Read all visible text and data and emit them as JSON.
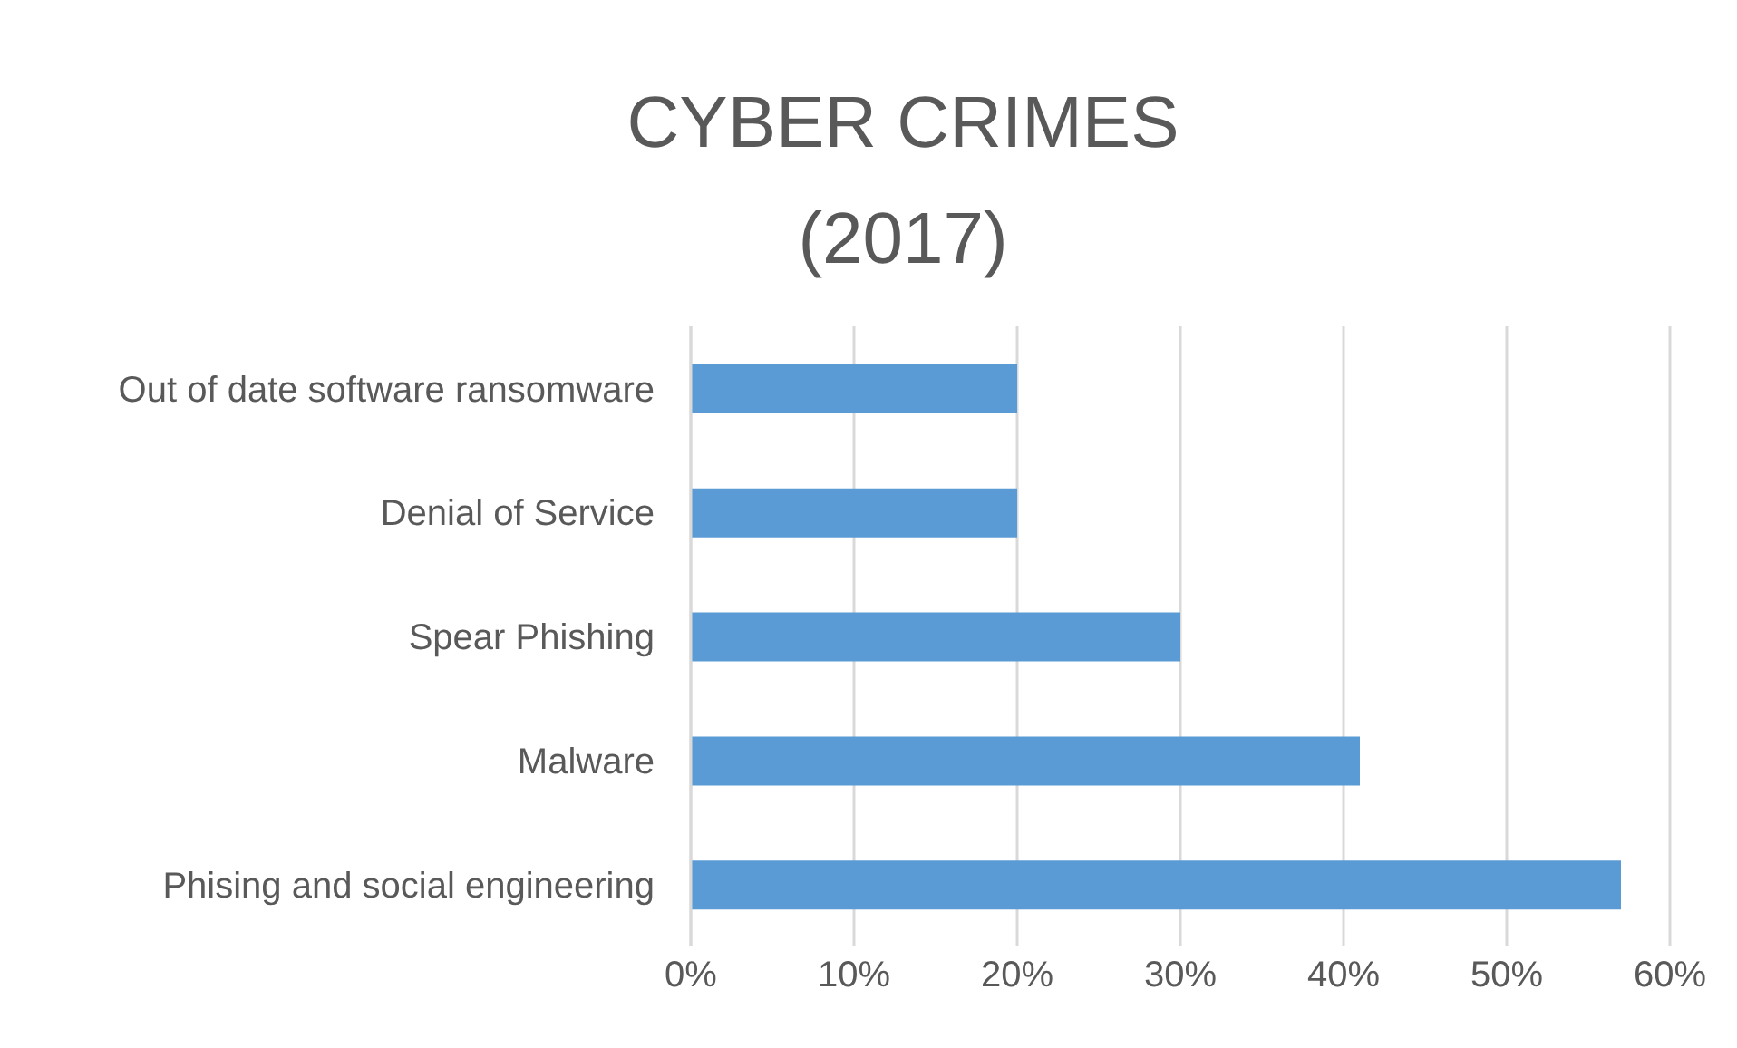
{
  "chart_data": {
    "type": "bar",
    "orientation": "horizontal",
    "title": "CYBER CRIMES\n(2017)",
    "categories": [
      "Out of date software ransomware",
      "Denial of Service",
      "Spear Phishing",
      "Malware",
      "Phising and social engineering"
    ],
    "values": [
      20,
      20,
      30,
      41,
      57
    ],
    "color": "#5b9bd5",
    "xlim": [
      0,
      60
    ],
    "xticks": [
      {
        "value": 0,
        "label": "0%"
      },
      {
        "value": 10,
        "label": "10%"
      },
      {
        "value": 20,
        "label": "20%"
      },
      {
        "value": 30,
        "label": "30%"
      },
      {
        "value": 40,
        "label": "40%"
      },
      {
        "value": 50,
        "label": "50%"
      },
      {
        "value": 60,
        "label": "60%"
      }
    ],
    "grid": "x",
    "legend": false
  }
}
